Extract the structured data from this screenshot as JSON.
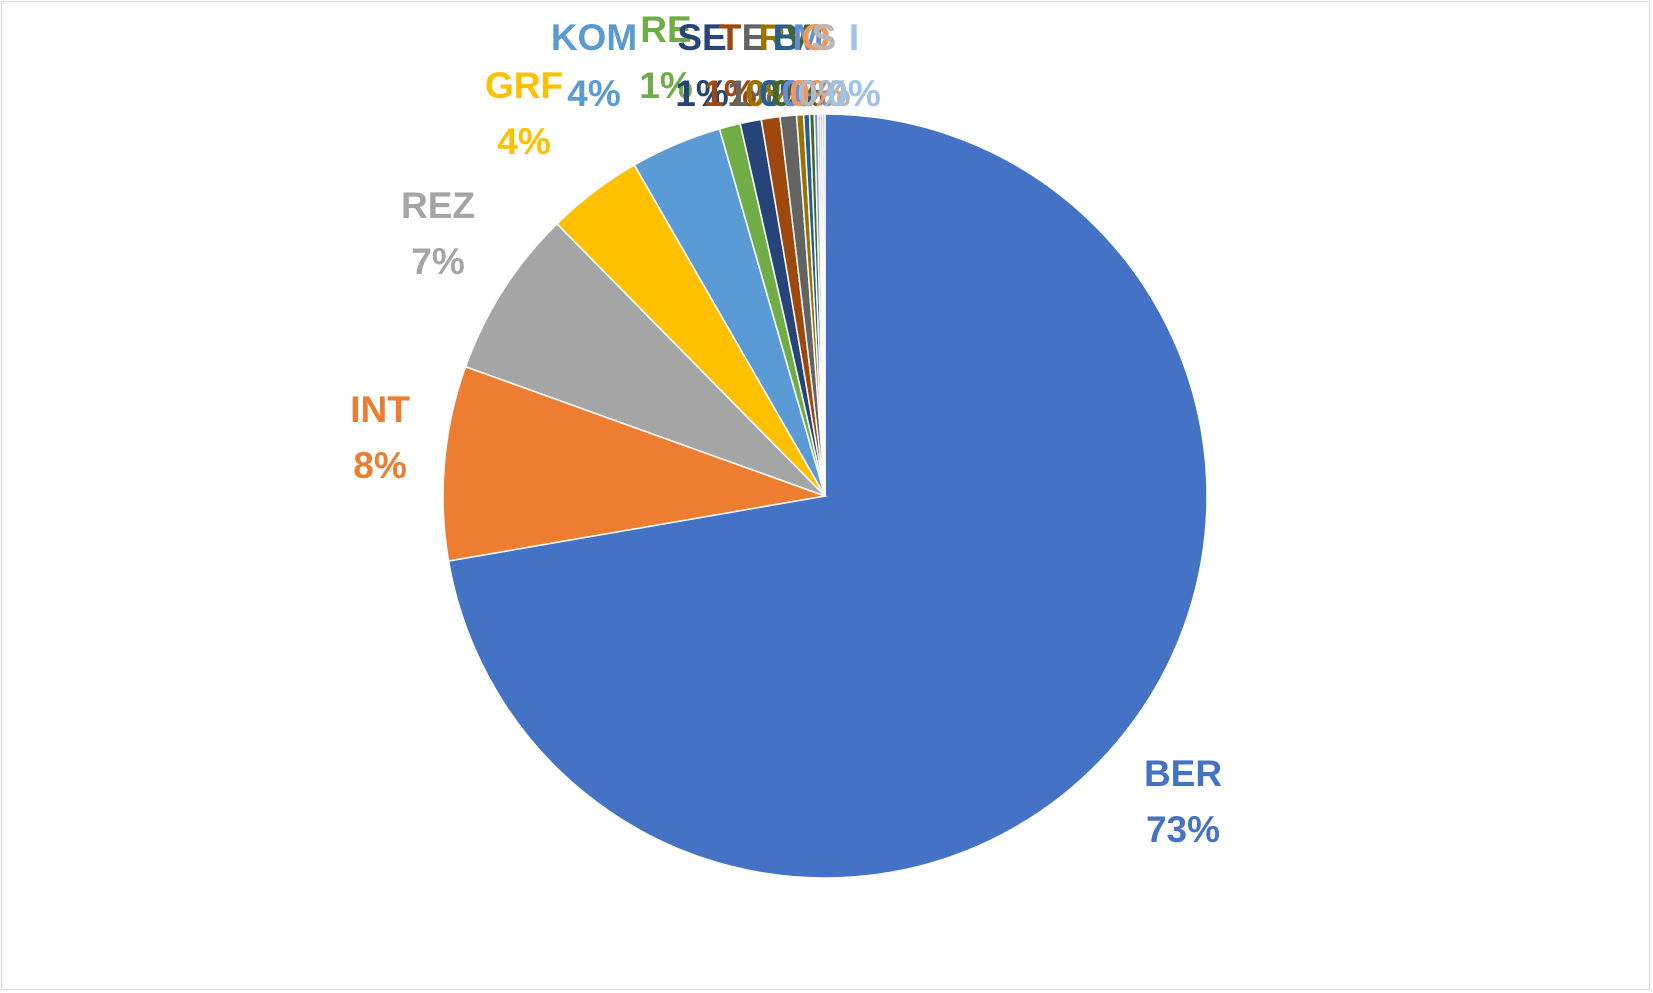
{
  "chart_data": {
    "type": "pie",
    "title": "",
    "start_angle_deg": 0,
    "direction": "clockwise",
    "legend": "none",
    "slices": [
      {
        "label": "BER",
        "value": 73.0,
        "pct_label": "73%",
        "color": "#4472C4"
      },
      {
        "label": "INT",
        "value": 8.3,
        "pct_label": "8%",
        "color": "#ED7D31"
      },
      {
        "label": "REZ",
        "value": 7.2,
        "pct_label": "7%",
        "color": "#A5A5A5"
      },
      {
        "label": "GRF",
        "value": 4.1,
        "pct_label": "4%",
        "color": "#FFC000"
      },
      {
        "label": "KOM",
        "value": 3.9,
        "pct_label": "4%",
        "color": "#5B9BD5"
      },
      {
        "label": "RE",
        "value": 0.9,
        "pct_label": "1%",
        "color": "#70AD47"
      },
      {
        "label": "SE",
        "value": 0.9,
        "pct_label": "1%",
        "color": "#264478"
      },
      {
        "label": "T",
        "value": 0.8,
        "pct_label": "1%",
        "color": "#9E480E"
      },
      {
        "label": "E",
        "value": 0.7,
        "pct_label": "1%",
        "color": "#636363"
      },
      {
        "label": "R",
        "value": 0.3,
        "pct_label": "0%",
        "color": "#997300"
      },
      {
        "label": "B",
        "value": 0.25,
        "pct_label": "0%",
        "color": "#255E91"
      },
      {
        "label": "V",
        "value": 0.2,
        "pct_label": "0%",
        "color": "#43682B"
      },
      {
        "label": "M",
        "value": 0.15,
        "pct_label": "0%",
        "color": "#698ED0"
      },
      {
        "label": "O",
        "value": 0.1,
        "pct_label": "0%",
        "color": "#F1975A"
      },
      {
        "label": "S",
        "value": 0.1,
        "pct_label": "0%",
        "color": "#B7B7B7"
      },
      {
        "label": "I",
        "value": 0.1,
        "pct_label": "0%",
        "color": "#9DC3E6"
      }
    ]
  }
}
